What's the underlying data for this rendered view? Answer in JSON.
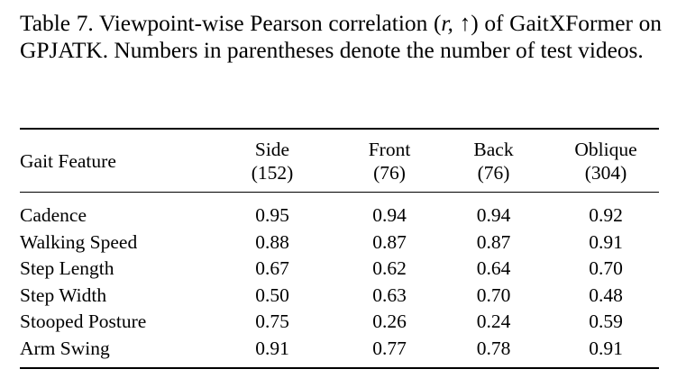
{
  "caption": {
    "label": "Table 7.",
    "text_before": " Viewpoint-wise Pearson correlation (",
    "math": "r, ↑",
    "text_after": ") of GaitXFormer on GPJATK. Numbers in parentheses denote the number of test videos."
  },
  "table": {
    "header": {
      "feature": "Gait Feature",
      "columns": [
        {
          "name": "Side",
          "count": "(152)"
        },
        {
          "name": "Front",
          "count": "(76)"
        },
        {
          "name": "Back",
          "count": "(76)"
        },
        {
          "name": "Oblique",
          "count": "(304)"
        }
      ]
    },
    "rows": [
      {
        "feature": "Cadence",
        "values": [
          "0.95",
          "0.94",
          "0.94",
          "0.92"
        ],
        "best": 0
      },
      {
        "feature": "Walking Speed",
        "values": [
          "0.88",
          "0.87",
          "0.87",
          "0.91"
        ],
        "best": 3
      },
      {
        "feature": "Step Length",
        "values": [
          "0.67",
          "0.62",
          "0.64",
          "0.70"
        ],
        "best": 3
      },
      {
        "feature": "Step Width",
        "values": [
          "0.50",
          "0.63",
          "0.70",
          "0.48"
        ],
        "best": 2
      },
      {
        "feature": "Stooped Posture",
        "values": [
          "0.75",
          "0.26",
          "0.24",
          "0.59"
        ],
        "best": 0
      },
      {
        "feature": "Arm Swing",
        "values": [
          "0.91",
          "0.77",
          "0.78",
          "0.91"
        ],
        "best": [
          0,
          3
        ]
      }
    ]
  }
}
